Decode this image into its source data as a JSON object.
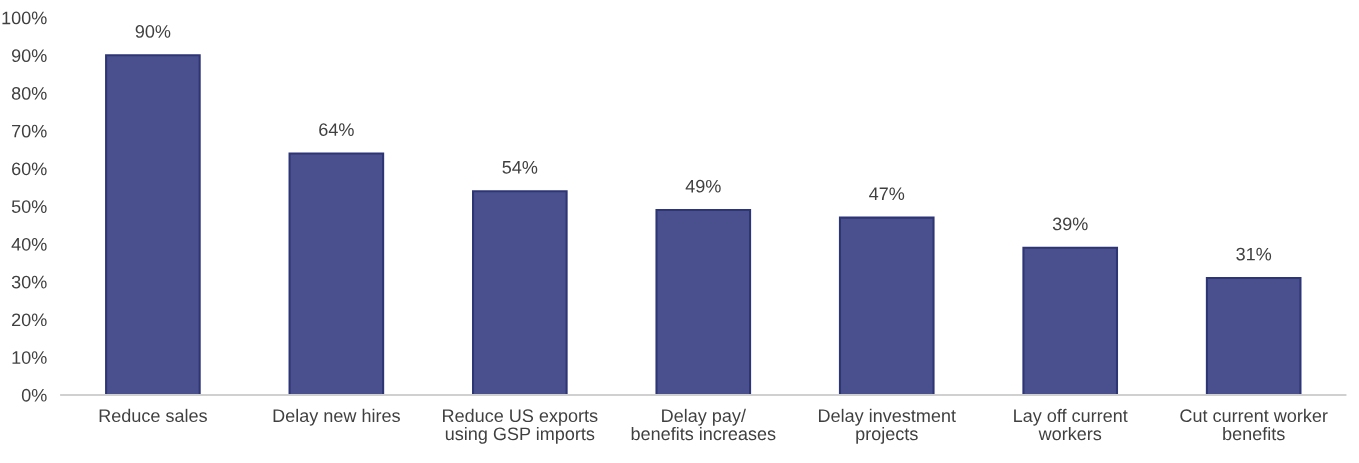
{
  "chart_data": {
    "type": "bar",
    "categories": [
      "Reduce sales",
      "Delay new hires",
      "Reduce US exports\nusing GSP imports",
      "Delay pay/\nbenefits increases",
      "Delay investment\nprojects",
      "Lay off current\nworkers",
      "Cut current worker\nbenefits"
    ],
    "values": [
      90,
      64,
      54,
      49,
      47,
      39,
      31
    ],
    "value_labels": [
      "90%",
      "64%",
      "54%",
      "49%",
      "47%",
      "39%",
      "31%"
    ],
    "color": "#4a508e",
    "ylim": [
      0,
      100
    ],
    "yticks": [
      {
        "value": 0,
        "label": "0%"
      },
      {
        "value": 10,
        "label": "10%"
      },
      {
        "value": 20,
        "label": "20%"
      },
      {
        "value": 30,
        "label": "30%"
      },
      {
        "value": 40,
        "label": "40%"
      },
      {
        "value": 50,
        "label": "50%"
      },
      {
        "value": 60,
        "label": "60%"
      },
      {
        "value": 70,
        "label": "70%"
      },
      {
        "value": 80,
        "label": "80%"
      },
      {
        "value": 90,
        "label": "90%"
      },
      {
        "value": 100,
        "label": "100%"
      }
    ],
    "grid": false
  }
}
